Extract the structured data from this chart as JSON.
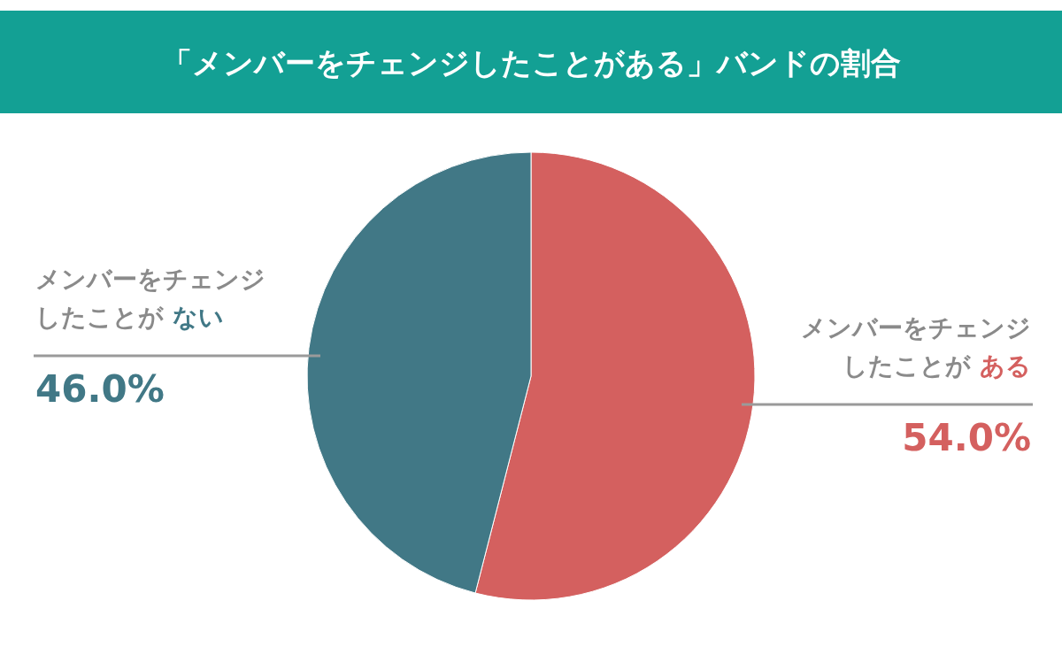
{
  "chart_data": {
    "type": "pie",
    "title": "「メンバーをチェンジしたことがある」バンドの割合",
    "categories": [
      "メンバーをチェンジしたことが ある",
      "メンバーをチェンジしたことが ない"
    ],
    "values": [
      54.0,
      46.0
    ],
    "colors": [
      "#d4605f",
      "#417886"
    ],
    "value_labels": [
      "54.0%",
      "46.0%"
    ]
  }
}
